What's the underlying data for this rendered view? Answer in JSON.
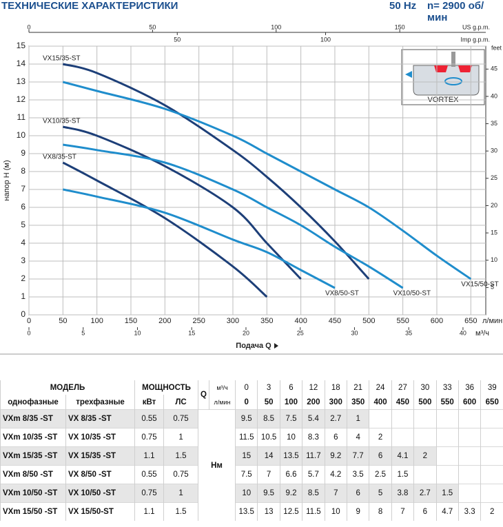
{
  "header": {
    "title": "ТЕХНИЧЕСКИЕ ХАРАКТЕРИСТИКИ",
    "frequency": "50 Hz",
    "speed": "n= 2900 об/мин"
  },
  "chart_data": {
    "type": "line",
    "y_label": "напор H (м)",
    "x_label": "Подача Q",
    "x_unit": "л/мин",
    "y2_label": "feet",
    "x2_label": "м³/ч",
    "x3_label": "US g.p.m.",
    "x4_label": "Imp g.p.m.",
    "inset_label": "VORTEX",
    "grid": true,
    "xlim": [
      0,
      672
    ],
    "xticks": [
      0,
      50,
      100,
      150,
      200,
      250,
      300,
      350,
      400,
      450,
      500,
      550,
      600,
      650
    ],
    "ylim": [
      0,
      15
    ],
    "yticks": [
      0,
      1,
      2,
      3,
      4,
      5,
      6,
      7,
      8,
      9,
      10,
      11,
      12,
      13,
      14,
      15
    ],
    "y2lim": [
      0,
      49.2
    ],
    "y2ticks": [
      5,
      10,
      15,
      20,
      25,
      30,
      35,
      40,
      45
    ],
    "x2lim": [
      0,
      42.1
    ],
    "x2ticks": [
      0,
      5,
      10,
      15,
      20,
      25,
      30,
      35,
      40
    ],
    "x3lim": [
      0,
      184.8
    ],
    "x3ticks": [
      0,
      50,
      100,
      150
    ],
    "x4lim": [
      0,
      154
    ],
    "x4ticks": [
      50,
      100
    ],
    "series": [
      {
        "name": "VX8/35-ST",
        "color": "#1d3f78",
        "x": [
          50,
          100,
          200,
          300,
          350
        ],
        "values": [
          8.5,
          7.5,
          5.4,
          2.7,
          1
        ]
      },
      {
        "name": "VX10/35-ST",
        "color": "#1d3f78",
        "x": [
          50,
          100,
          200,
          300,
          350,
          400
        ],
        "values": [
          10.5,
          10,
          8.3,
          6,
          4,
          2
        ]
      },
      {
        "name": "VX15/35-ST",
        "color": "#1d3f78",
        "x": [
          50,
          100,
          200,
          300,
          350,
          400,
          450,
          500
        ],
        "values": [
          14,
          13.5,
          11.7,
          9.2,
          7.7,
          6,
          4.1,
          2
        ]
      },
      {
        "name": "VX8/50-ST",
        "color": "#1f8dcc",
        "x": [
          50,
          100,
          200,
          300,
          350,
          400,
          450
        ],
        "values": [
          7,
          6.6,
          5.7,
          4.2,
          3.5,
          2.5,
          1.5
        ]
      },
      {
        "name": "VX10/50-ST",
        "color": "#1f8dcc",
        "x": [
          50,
          100,
          200,
          300,
          350,
          400,
          450,
          500,
          550
        ],
        "values": [
          9.5,
          9.2,
          8.5,
          7,
          6,
          5,
          3.8,
          2.7,
          1.5
        ]
      },
      {
        "name": "VX15/50-ST",
        "color": "#1f8dcc",
        "x": [
          50,
          100,
          200,
          300,
          350,
          400,
          450,
          500,
          550,
          600,
          650
        ],
        "values": [
          13,
          12.5,
          11.5,
          10,
          9,
          8,
          7,
          6,
          4.7,
          3.3,
          2
        ]
      }
    ]
  },
  "table": {
    "headers": {
      "model": "МОДЕЛЬ",
      "power": "МОЩНОСТЬ",
      "q": "Q",
      "q_unit_m3h": "м³/ч",
      "q_unit_lmin": "л/мин",
      "single_phase": "однофазные",
      "three_phase": "трехфазные",
      "kw": "кВт",
      "hp": "ЛС",
      "head": "Hм"
    },
    "q_m3h": [
      0,
      3,
      6,
      12,
      18,
      21,
      24,
      27,
      30,
      33,
      36,
      39
    ],
    "q_lmin": [
      0,
      50,
      100,
      200,
      300,
      350,
      400,
      450,
      500,
      550,
      600,
      650
    ],
    "rows": [
      {
        "single": "VXm 8/35 -ST",
        "three": "VX 8/35 -ST",
        "kw": 0.55,
        "hp": 0.75,
        "head": [
          9.5,
          8.5,
          7.5,
          5.4,
          2.7,
          1
        ]
      },
      {
        "single": "VXm 10/35 -ST",
        "three": "VX 10/35 -ST",
        "kw": 0.75,
        "hp": 1,
        "head": [
          11.5,
          10.5,
          10,
          8.3,
          6,
          4,
          2
        ]
      },
      {
        "single": "VXm 15/35 -ST",
        "three": "VX 15/35 -ST",
        "kw": 1.1,
        "hp": 1.5,
        "head": [
          15,
          14,
          13.5,
          11.7,
          9.2,
          7.7,
          6,
          4.1,
          2
        ]
      },
      {
        "single": "VXm 8/50 -ST",
        "three": "VX 8/50 -ST",
        "kw": 0.55,
        "hp": 0.75,
        "head": [
          7.5,
          7,
          6.6,
          5.7,
          4.2,
          3.5,
          2.5,
          1.5
        ]
      },
      {
        "single": "VXm 10/50 -ST",
        "three": "VX 10/50 -ST",
        "kw": 0.75,
        "hp": 1,
        "head": [
          10,
          9.5,
          9.2,
          8.5,
          7,
          6,
          5,
          3.8,
          2.7,
          1.5
        ]
      },
      {
        "single": "VXm 15/50 -ST",
        "three": "VX 15/50-ST",
        "kw": 1.1,
        "hp": 1.5,
        "head": [
          13.5,
          13,
          12.5,
          11.5,
          10,
          9,
          8,
          7,
          6,
          4.7,
          3.3,
          2
        ]
      }
    ]
  }
}
